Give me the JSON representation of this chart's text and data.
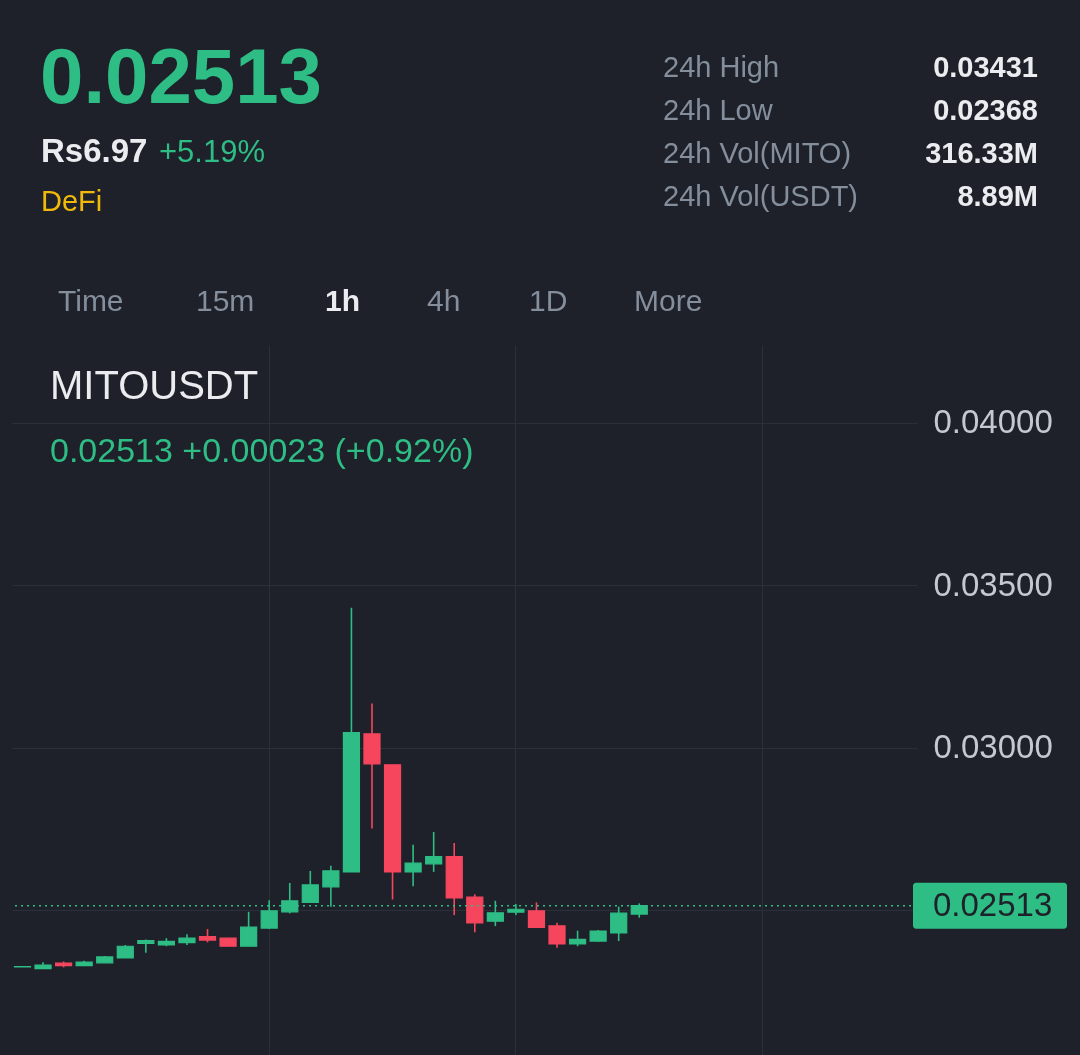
{
  "chart_data": {
    "type": "candlestick",
    "title": "MITOUSDT",
    "subtitle": "0.02513 +0.00023 (+0.92%)",
    "annotations": [
      "0.02513",
      "Rs6.97",
      "+5.19%",
      "DeFi",
      "24h High",
      "0.03431",
      "24h Low",
      "0.02368",
      "24h Vol(MITO)",
      "316.33M",
      "24h Vol(USDT)",
      "8.89M",
      "Time",
      "15m",
      "1h",
      "4h",
      "1D",
      "More"
    ],
    "categories": [
      null,
      null,
      null,
      null,
      null,
      null,
      null,
      null,
      null,
      null,
      null,
      null,
      null,
      null,
      null,
      null,
      null,
      null,
      null,
      null,
      null,
      null,
      null,
      null,
      null,
      null,
      null,
      null,
      null,
      null,
      null,
      null,
      null,
      null,
      null,
      null,
      null,
      null,
      null,
      null,
      null,
      null,
      null,
      null
    ],
    "ohlc": [
      [
        0.02324,
        0.02325,
        0.02324,
        0.02325
      ],
      [
        0.02319,
        0.02339,
        0.02319,
        0.0233
      ],
      [
        0.02336,
        0.02341,
        0.02323,
        0.02328
      ],
      [
        0.02328,
        0.02343,
        0.02328,
        0.02339
      ],
      [
        0.02337,
        0.02358,
        0.02337,
        0.02355
      ],
      [
        0.02352,
        0.02392,
        0.02352,
        0.02388
      ],
      [
        0.02397,
        0.02409,
        0.02368,
        0.02405
      ],
      [
        0.02392,
        0.02413,
        0.02388,
        0.02403
      ],
      [
        0.02399,
        0.02425,
        0.02392,
        0.02413
      ],
      [
        0.02418,
        0.02441,
        0.024,
        0.02407
      ],
      [
        0.02413,
        0.02413,
        0.02388,
        0.02388
      ],
      [
        0.02388,
        0.02494,
        0.02388,
        0.02447
      ],
      [
        0.02444,
        0.0253,
        0.02441,
        0.02497
      ],
      [
        0.02494,
        0.02583,
        0.02489,
        0.02528
      ],
      [
        0.02523,
        0.0262,
        0.02523,
        0.02577
      ],
      [
        0.02571,
        0.02636,
        0.0251,
        0.0262
      ],
      [
        0.02617,
        0.03431,
        0.02617,
        0.03046
      ],
      [
        0.03042,
        0.03136,
        0.02751,
        0.0295
      ],
      [
        0.02947,
        0.02947,
        0.02532,
        0.02617
      ],
      [
        0.02617,
        0.02701,
        0.02573,
        0.02644
      ],
      [
        0.02642,
        0.0274,
        0.02617,
        0.02664
      ],
      [
        0.02664,
        0.02706,
        0.02484,
        0.02537
      ],
      [
        0.02539,
        0.02548,
        0.02431,
        0.0246
      ],
      [
        0.02465,
        0.02528,
        0.0245,
        0.02491
      ],
      [
        0.02493,
        0.02518,
        0.02484,
        0.02502
      ],
      [
        0.02497,
        0.02523,
        0.02446,
        0.02446
      ],
      [
        0.02451,
        0.0246,
        0.02383,
        0.02395
      ],
      [
        0.02395,
        0.02436,
        0.02388,
        0.02409
      ],
      [
        0.02404,
        0.02438,
        0.02402,
        0.02435
      ],
      [
        0.02429,
        0.0251,
        0.02404,
        0.0249
      ],
      [
        0.02487,
        0.0252,
        0.02476,
        0.02513
      ],
      null,
      null,
      null,
      null,
      null,
      null,
      null,
      null,
      null,
      null,
      null,
      null,
      null
    ],
    "colors": [
      "#2ebd85",
      "#2ebd85",
      "#f6465d",
      "#2ebd85",
      "#2ebd85",
      "#2ebd85",
      "#2ebd85",
      "#2ebd85",
      "#2ebd85",
      "#f6465d",
      "#f6465d",
      "#2ebd85",
      "#2ebd85",
      "#2ebd85",
      "#2ebd85",
      "#2ebd85",
      "#2ebd85",
      "#f6465d",
      "#f6465d",
      "#2ebd85",
      "#2ebd85",
      "#f6465d",
      "#f6465d",
      "#2ebd85",
      "#2ebd85",
      "#f6465d",
      "#f6465d",
      "#2ebd85",
      "#2ebd85",
      "#2ebd85",
      "#2ebd85",
      null,
      null,
      null,
      null,
      null,
      null,
      null,
      null,
      null,
      null,
      null,
      null,
      null
    ],
    "ylim": [
      0.02053,
      0.0424
    ],
    "yticks": [
      {
        "value": 0.025,
        "label": null
      },
      {
        "value": 0.03,
        "label": "0.03000"
      },
      {
        "value": 0.035,
        "label": "0.03500"
      },
      {
        "value": 0.04,
        "label": "0.04000"
      }
    ],
    "ref_lines": [
      {
        "axis": "y",
        "value": 0.02513,
        "label": "0.02513",
        "color": "#2ebd85",
        "line_style": "dotted"
      }
    ],
    "grid": true
  }
}
